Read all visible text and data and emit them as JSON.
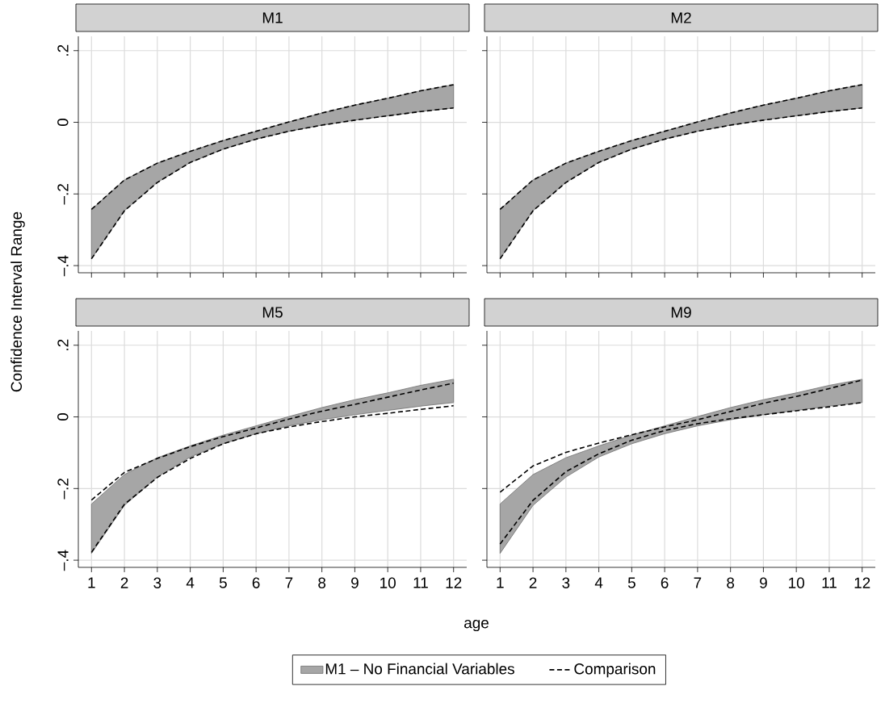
{
  "chart_data": [
    {
      "type": "area",
      "title": "M1",
      "ylabel": "Confidence Interval Range",
      "x": [
        1,
        2,
        3,
        4,
        5,
        6,
        7,
        8,
        9,
        10,
        11,
        12
      ],
      "xlim": [
        0.6,
        12.4
      ],
      "ylim": [
        -0.42,
        0.24
      ],
      "xticks": [
        1,
        2,
        3,
        4,
        5,
        6,
        7,
        8,
        9,
        10,
        11,
        12
      ],
      "yticks": [
        {
          "value": -0.4,
          "label": "–.4"
        },
        {
          "value": -0.2,
          "label": "–.2"
        },
        0,
        {
          "value": 0.2,
          "label": ".2"
        }
      ],
      "grid": true,
      "tick_labels": "y",
      "series": [
        {
          "type": "area",
          "color": "#a6a6a6",
          "values": [
            null,
            null,
            null,
            null,
            null,
            null,
            null,
            null,
            null,
            null,
            null,
            null
          ],
          "upper": [
            -0.243,
            -0.161,
            -0.114,
            -0.081,
            -0.051,
            -0.025,
            0.001,
            0.026,
            0.048,
            0.067,
            0.088,
            0.105
          ],
          "lower": [
            -0.381,
            -0.247,
            -0.168,
            -0.112,
            -0.075,
            -0.047,
            -0.025,
            -0.008,
            0.006,
            0.018,
            0.03,
            0.04
          ]
        },
        {
          "type": "line",
          "color": "#000000",
          "line_style": "dashed",
          "values": [
            -0.243,
            -0.161,
            -0.114,
            -0.081,
            -0.051,
            -0.025,
            0.001,
            0.026,
            0.048,
            0.067,
            0.088,
            0.105
          ]
        },
        {
          "type": "line",
          "color": "#000000",
          "line_style": "dashed",
          "values": [
            -0.381,
            -0.247,
            -0.168,
            -0.112,
            -0.075,
            -0.047,
            -0.025,
            -0.008,
            0.006,
            0.018,
            0.03,
            0.04
          ]
        }
      ]
    },
    {
      "type": "area",
      "title": "M2",
      "x": [
        1,
        2,
        3,
        4,
        5,
        6,
        7,
        8,
        9,
        10,
        11,
        12
      ],
      "xlim": [
        0.6,
        12.4
      ],
      "ylim": [
        -0.42,
        0.24
      ],
      "xticks": [
        1,
        2,
        3,
        4,
        5,
        6,
        7,
        8,
        9,
        10,
        11,
        12
      ],
      "yticks": [
        {
          "value": -0.4,
          "label": null
        },
        {
          "value": -0.2,
          "label": null
        },
        0,
        {
          "value": 0.2,
          "label": null
        }
      ],
      "grid": true,
      "tick_labels": false,
      "series": [
        {
          "type": "area",
          "color": "#a6a6a6",
          "values": [
            null,
            null,
            null,
            null,
            null,
            null,
            null,
            null,
            null,
            null,
            null,
            null
          ],
          "upper": [
            -0.243,
            -0.161,
            -0.114,
            -0.081,
            -0.051,
            -0.025,
            0.001,
            0.026,
            0.048,
            0.067,
            0.088,
            0.105
          ],
          "lower": [
            -0.381,
            -0.247,
            -0.168,
            -0.112,
            -0.075,
            -0.047,
            -0.025,
            -0.008,
            0.006,
            0.018,
            0.03,
            0.04
          ]
        },
        {
          "type": "line",
          "color": "#000000",
          "line_style": "dashed",
          "values": [
            -0.243,
            -0.161,
            -0.114,
            -0.081,
            -0.051,
            -0.025,
            0.001,
            0.026,
            0.048,
            0.067,
            0.088,
            0.105
          ]
        },
        {
          "type": "line",
          "color": "#000000",
          "line_style": "dashed",
          "values": [
            -0.381,
            -0.247,
            -0.168,
            -0.112,
            -0.075,
            -0.047,
            -0.025,
            -0.008,
            0.006,
            0.018,
            0.03,
            0.04
          ]
        }
      ]
    },
    {
      "type": "area",
      "title": "M5",
      "xlabel": "age",
      "legend": "bottom",
      "x": [
        1,
        2,
        3,
        4,
        5,
        6,
        7,
        8,
        9,
        10,
        11,
        12
      ],
      "xlim": [
        0.6,
        12.4
      ],
      "ylim": [
        -0.42,
        0.24
      ],
      "xticks": [
        1,
        2,
        3,
        4,
        5,
        6,
        7,
        8,
        9,
        10,
        11,
        12
      ],
      "yticks": [
        {
          "value": -0.4,
          "label": "–.4"
        },
        {
          "value": -0.2,
          "label": "–.2"
        },
        0,
        {
          "value": 0.2,
          "label": ".2"
        }
      ],
      "grid": true,
      "series": [
        {
          "type": "area",
          "name": "M1 – No Financial Variables",
          "color": "#a6a6a6",
          "values": [
            null,
            null,
            null,
            null,
            null,
            null,
            null,
            null,
            null,
            null,
            null,
            null
          ],
          "upper": [
            -0.243,
            -0.161,
            -0.114,
            -0.081,
            -0.051,
            -0.025,
            0.001,
            0.026,
            0.048,
            0.067,
            0.088,
            0.105
          ],
          "lower": [
            -0.381,
            -0.247,
            -0.168,
            -0.112,
            -0.075,
            -0.047,
            -0.025,
            -0.008,
            0.006,
            0.018,
            0.03,
            0.04
          ]
        },
        {
          "type": "line",
          "name": "Comparison",
          "color": "#000000",
          "line_style": "dashed",
          "values": [
            -0.232,
            -0.155,
            -0.116,
            -0.083,
            -0.055,
            -0.031,
            -0.006,
            0.016,
            0.035,
            0.055,
            0.075,
            0.094
          ]
        },
        {
          "type": "line",
          "color": "#000000",
          "line_style": "dashed",
          "values": [
            -0.378,
            -0.244,
            -0.169,
            -0.116,
            -0.075,
            -0.047,
            -0.028,
            -0.013,
            0.0,
            0.01,
            0.021,
            0.031
          ]
        }
      ]
    },
    {
      "type": "area",
      "title": "M9",
      "x": [
        1,
        2,
        3,
        4,
        5,
        6,
        7,
        8,
        9,
        10,
        11,
        12
      ],
      "xlim": [
        0.6,
        12.4
      ],
      "ylim": [
        -0.42,
        0.24
      ],
      "xticks": [
        1,
        2,
        3,
        4,
        5,
        6,
        7,
        8,
        9,
        10,
        11,
        12
      ],
      "yticks": [
        {
          "value": -0.4,
          "label": null
        },
        {
          "value": -0.2,
          "label": null
        },
        0,
        {
          "value": 0.2,
          "label": null
        }
      ],
      "grid": true,
      "tick_labels": "x",
      "series": [
        {
          "type": "area",
          "color": "#a6a6a6",
          "values": [
            null,
            null,
            null,
            null,
            null,
            null,
            null,
            null,
            null,
            null,
            null,
            null
          ],
          "upper": [
            -0.243,
            -0.161,
            -0.114,
            -0.081,
            -0.051,
            -0.025,
            0.001,
            0.026,
            0.048,
            0.067,
            0.088,
            0.105
          ],
          "lower": [
            -0.381,
            -0.247,
            -0.168,
            -0.112,
            -0.075,
            -0.047,
            -0.025,
            -0.008,
            0.006,
            0.018,
            0.03,
            0.04
          ]
        },
        {
          "type": "line",
          "color": "#000000",
          "line_style": "dashed",
          "values": [
            -0.21,
            -0.137,
            -0.099,
            -0.073,
            -0.05,
            -0.028,
            -0.008,
            0.015,
            0.038,
            0.057,
            0.079,
            0.103
          ]
        },
        {
          "type": "line",
          "color": "#000000",
          "line_style": "dashed",
          "values": [
            -0.355,
            -0.233,
            -0.153,
            -0.103,
            -0.065,
            -0.038,
            -0.019,
            -0.005,
            0.006,
            0.017,
            0.028,
            0.04
          ]
        }
      ]
    }
  ]
}
